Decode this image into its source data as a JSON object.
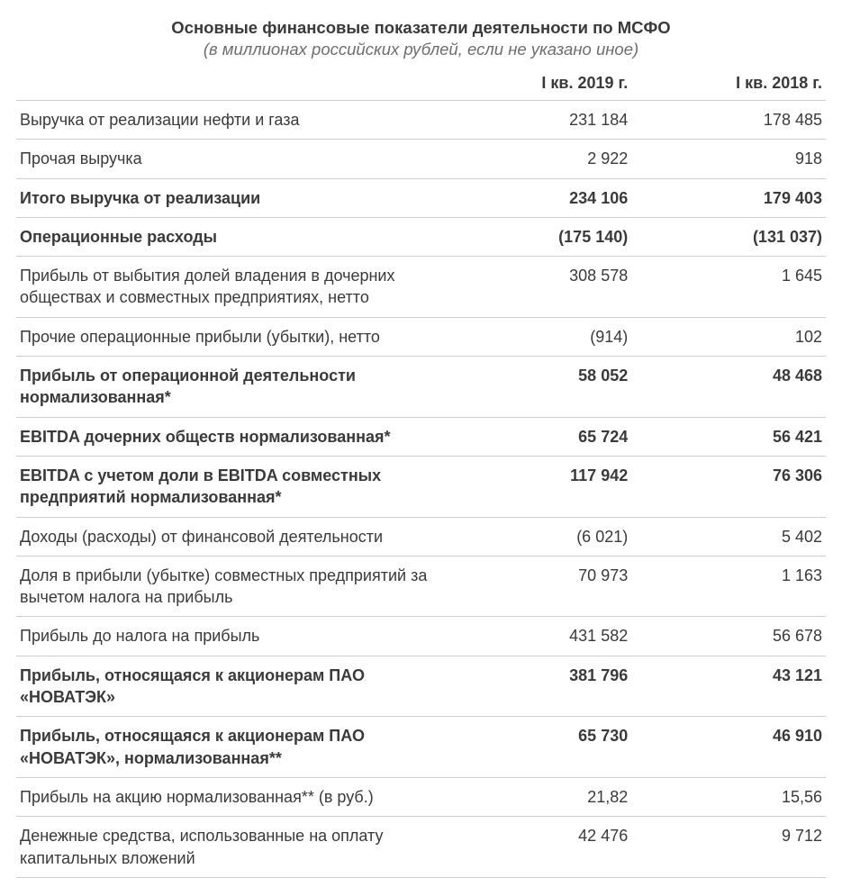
{
  "header": {
    "title": "Основные финансовые показатели деятельности по МСФО",
    "subtitle": "(в миллионах российских рублей, если не указано иное)"
  },
  "table": {
    "columns": [
      "",
      "I кв. 2019 г.",
      "I кв. 2018 г."
    ],
    "column_widths_pct": [
      52,
      24,
      24
    ],
    "rows": [
      {
        "label": "Выручка от реализации нефти и газа",
        "v1": "231 184",
        "v2": "178 485",
        "bold": false
      },
      {
        "label": "Прочая выручка",
        "v1": "2 922",
        "v2": "918",
        "bold": false
      },
      {
        "label": "Итого выручка от реализации",
        "v1": "234 106",
        "v2": "179 403",
        "bold": true
      },
      {
        "label": "Операционные расходы",
        "v1": "(175 140)",
        "v2": "(131 037)",
        "bold": true
      },
      {
        "label": "Прибыль от выбытия долей владения в дочерних обществах и совместных предприятиях, нетто",
        "v1": "308 578",
        "v2": "1 645",
        "bold": false
      },
      {
        "label": "Прочие операционные прибыли (убытки), нетто",
        "v1": "(914)",
        "v2": "102",
        "bold": false
      },
      {
        "label": "Прибыль от операционной деятельности нормализованная*",
        "v1": "58 052",
        "v2": "48 468",
        "bold": true
      },
      {
        "label": "EBITDA дочерних обществ нормализованная*",
        "v1": "65 724",
        "v2": "56 421",
        "bold": true
      },
      {
        "label": "EBITDA с учетом доли в EBITDA совместных предприятий нормализованная*",
        "v1": "117 942",
        "v2": "76 306",
        "bold": true
      },
      {
        "label": "Доходы (расходы) от финансовой деятельности",
        "v1": "(6 021)",
        "v2": "5 402",
        "bold": false
      },
      {
        "label": "Доля в прибыли (убытке) совместных предприятий за вычетом налога на прибыль",
        "v1": "70 973",
        "v2": "1 163",
        "bold": false
      },
      {
        "label": "Прибыль до налога на прибыль",
        "v1": "431 582",
        "v2": "56 678",
        "bold": false
      },
      {
        "label": "Прибыль, относящаяся к акционерам ПАО «НОВАТЭК»",
        "v1": "381 796",
        "v2": "43 121",
        "bold": true
      },
      {
        "label": "Прибыль, относящаяся к акционерам ПАО «НОВАТЭК», нормализованная**",
        "v1": "65 730",
        "v2": "46 910",
        "bold": true
      },
      {
        "label": "Прибыль на акцию нормализованная** (в руб.)",
        "v1": "21,82",
        "v2": "15,56",
        "bold": false
      },
      {
        "label": "Денежные средства, использованные на оплату капитальных вложений",
        "v1": "42 476",
        "v2": "9 712",
        "bold": false
      }
    ],
    "style": {
      "border_color": "#cfcfcf",
      "text_color": "#3a3a3a",
      "subtitle_color": "#6e6e6e",
      "background_color": "#ffffff",
      "title_fontsize": 18.5,
      "body_fontsize": 18
    }
  }
}
